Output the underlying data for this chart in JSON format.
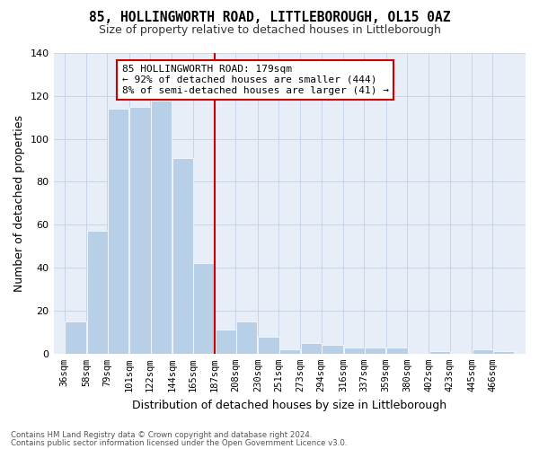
{
  "title": "85, HOLLINGWORTH ROAD, LITTLEBOROUGH, OL15 0AZ",
  "subtitle": "Size of property relative to detached houses in Littleborough",
  "xlabel": "Distribution of detached houses by size in Littleborough",
  "ylabel": "Number of detached properties",
  "bar_color": "#b8cfe8",
  "grid_color": "#c8d4e8",
  "background_color": "#e8eef8",
  "vline_color": "#cc0000",
  "categories": [
    "36sqm",
    "58sqm",
    "79sqm",
    "101sqm",
    "122sqm",
    "144sqm",
    "165sqm",
    "187sqm",
    "208sqm",
    "230sqm",
    "251sqm",
    "273sqm",
    "294sqm",
    "316sqm",
    "337sqm",
    "359sqm",
    "380sqm",
    "402sqm",
    "423sqm",
    "445sqm",
    "466sqm"
  ],
  "bin_starts": [
    36,
    58,
    79,
    101,
    122,
    144,
    165,
    187,
    208,
    230,
    251,
    273,
    294,
    316,
    337,
    359,
    380,
    402,
    423,
    445,
    466
  ],
  "bin_width": 22,
  "values": [
    15,
    57,
    114,
    115,
    118,
    91,
    42,
    11,
    15,
    8,
    2,
    5,
    4,
    3,
    3,
    3,
    0,
    1,
    0,
    2,
    1
  ],
  "ylim": [
    0,
    140
  ],
  "yticks": [
    0,
    20,
    40,
    60,
    80,
    100,
    120,
    140
  ],
  "vline_x": 187,
  "annotation_title": "85 HOLLINGWORTH ROAD: 179sqm",
  "annotation_line1": "← 92% of detached houses are smaller (444)",
  "annotation_line2": "8% of semi-detached houses are larger (41) →",
  "annotation_box_color": "#ffffff",
  "annotation_box_edge": "#cc0000",
  "footnote1": "Contains HM Land Registry data © Crown copyright and database right 2024.",
  "footnote2": "Contains public sector information licensed under the Open Government Licence v3.0."
}
